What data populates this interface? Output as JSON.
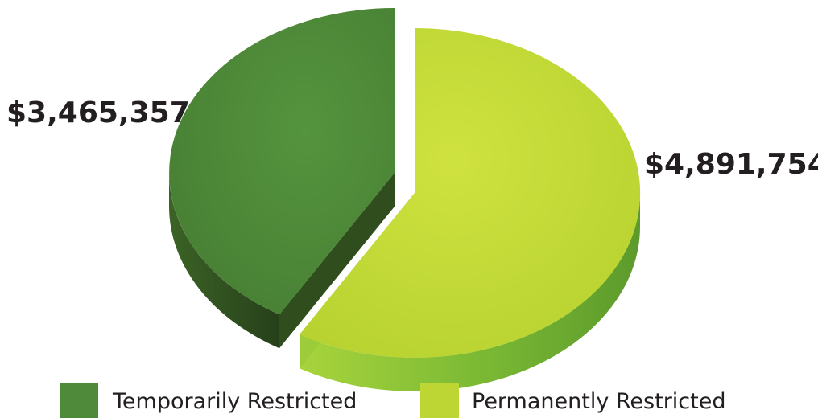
{
  "chart_data": {
    "type": "pie",
    "categories": [
      "Temporarily Restricted",
      "Permanently Restricted"
    ],
    "values": [
      3465357,
      4891754
    ],
    "value_labels": [
      "$3,465,357",
      "$4,891,754"
    ],
    "colors": [
      "#4e8a3a",
      "#bdd633"
    ],
    "side_colors": [
      "#2f4f1f",
      "#8fc43a"
    ],
    "legend_position": "bottom",
    "style": "3d-exploded"
  }
}
